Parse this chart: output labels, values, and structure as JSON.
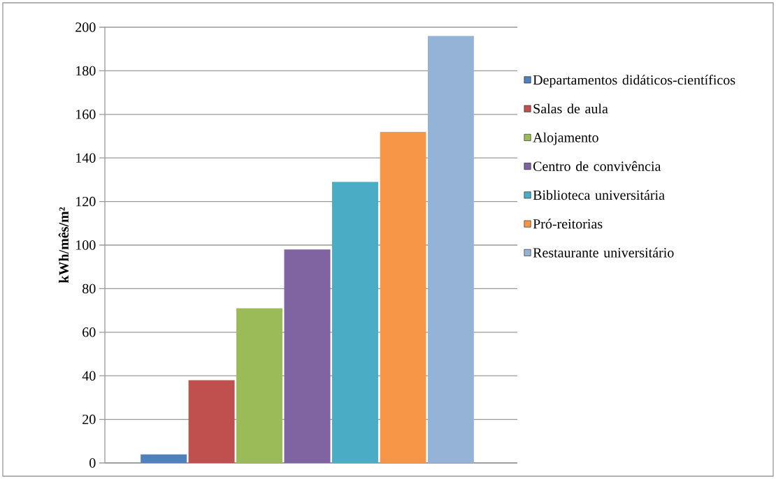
{
  "chart_data": {
    "type": "bar",
    "ylabel": "kWh/mês/m²",
    "categories": [
      null,
      null,
      null,
      null,
      null,
      null,
      null
    ],
    "stacked": true,
    "series": [
      {
        "name": "Departamentos didáticos-científicos",
        "color": "#4f81bd",
        "values": [
          4,
          null,
          null,
          null,
          null,
          null,
          null
        ]
      },
      {
        "name": "Salas de aula",
        "color": "#c0504d",
        "values": [
          null,
          38,
          null,
          null,
          null,
          null,
          null
        ]
      },
      {
        "name": "Alojamento",
        "color": "#9bbb59",
        "values": [
          null,
          null,
          71,
          null,
          null,
          null,
          null
        ]
      },
      {
        "name": "Centro de convivência",
        "color": "#8064a2",
        "values": [
          null,
          null,
          null,
          98,
          null,
          null,
          null
        ]
      },
      {
        "name": "Biblioteca universitária",
        "color": "#4bacc6",
        "values": [
          null,
          null,
          null,
          null,
          129,
          null,
          null
        ]
      },
      {
        "name": "Pró-reitorias",
        "color": "#f79646",
        "values": [
          null,
          null,
          null,
          null,
          null,
          152,
          null
        ]
      },
      {
        "name": "Restaurante universitário",
        "color": "#95b3d7",
        "values": [
          null,
          null,
          null,
          null,
          null,
          null,
          196
        ]
      }
    ],
    "ylim": [
      0,
      200
    ],
    "yticks": [
      0,
      20,
      40,
      60,
      80,
      100,
      120,
      140,
      160,
      180,
      200
    ],
    "grid": "y",
    "legend": "right"
  }
}
